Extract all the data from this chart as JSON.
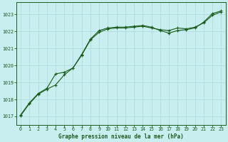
{
  "title": "Graphe pression niveau de la mer (hPa)",
  "background_color": "#c8eef0",
  "grid_color": "#a8d8d8",
  "line_color": "#1a5c1a",
  "xlim": [
    -0.5,
    23.5
  ],
  "ylim": [
    1016.5,
    1023.7
  ],
  "yticks": [
    1017,
    1018,
    1019,
    1020,
    1021,
    1022,
    1023
  ],
  "xticks": [
    0,
    1,
    2,
    3,
    4,
    5,
    6,
    7,
    8,
    9,
    10,
    11,
    12,
    13,
    14,
    15,
    16,
    17,
    18,
    19,
    20,
    21,
    22,
    23
  ],
  "line1_x": [
    0,
    1,
    2,
    3,
    4,
    5,
    6,
    7,
    8,
    9,
    10,
    11,
    12,
    13,
    14,
    15,
    16,
    17,
    18,
    19,
    20,
    21,
    22,
    23
  ],
  "line1_y": [
    1017.1,
    1017.8,
    1018.35,
    1018.65,
    1019.5,
    1019.6,
    1019.85,
    1020.65,
    1021.55,
    1022.05,
    1022.2,
    1022.25,
    1022.25,
    1022.3,
    1022.35,
    1022.25,
    1022.05,
    1021.9,
    1022.05,
    1022.1,
    1022.2,
    1022.55,
    1023.05,
    1023.2
  ],
  "line2_x": [
    0,
    1,
    2,
    3,
    4,
    5,
    6,
    7,
    8,
    9,
    10,
    11,
    12,
    13,
    14,
    15,
    16,
    17,
    18,
    19,
    20,
    21,
    22,
    23
  ],
  "line2_y": [
    1017.05,
    1017.75,
    1018.3,
    1018.6,
    1018.85,
    1019.45,
    1019.85,
    1020.6,
    1021.5,
    1021.95,
    1022.15,
    1022.2,
    1022.2,
    1022.25,
    1022.3,
    1022.2,
    1022.1,
    1022.05,
    1022.2,
    1022.15,
    1022.25,
    1022.5,
    1022.95,
    1023.15
  ]
}
